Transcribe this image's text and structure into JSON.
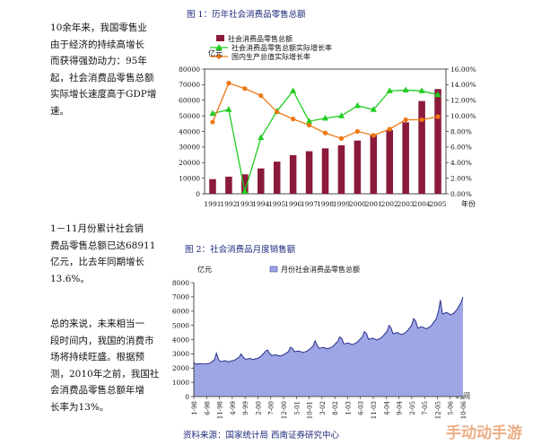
{
  "text": {
    "p1": "10余年来，我国零售业\n由于经济的持续高增长\n而获得强劲动力：95年\n起，社会消费品零售总额\n实际增长速度高于GDP增\n速。",
    "p2": "1－11月份累计社会销\n费品零售总额已达68911\n亿元，比去年同期增长\n13.6%。",
    "p3": "总的来说，未来相当一\n段时间内，我国的消费市\n场将持续旺盛。根据预\n测，2010年之前，我国社\n会消费品零售总额年增\n长率为13%。"
  },
  "figure1": {
    "title": "图 1：历年社会消费品零售总额",
    "y_unit": "亿元",
    "x_unit": "年份",
    "legend": [
      "社会消费品零售总额",
      "社会消费品零售总额实际增长率",
      "国内生产总值实际增长率"
    ]
  },
  "figure2": {
    "title": "图 2：社会消费品月度销售额",
    "y_unit": "亿元",
    "x_unit": "时间",
    "legend": [
      "月份社会消费品零售总额"
    ]
  },
  "source": "资料来源：国家统计局  西南证券研究中心",
  "watermark": "手动动手游",
  "colors": {
    "bar": "#8b1a3a",
    "green": "#22cc22",
    "orange": "#ee7711",
    "area": "#9ea6e6",
    "area_line": "#2a2f8a",
    "title": "#1d2a7a"
  },
  "chart_data": [
    {
      "type": "bar",
      "categories": [
        "1991",
        "1992",
        "1993",
        "1994",
        "1995",
        "1996",
        "1997",
        "1998",
        "1999",
        "2000",
        "2001",
        "2002",
        "2003",
        "2004",
        "2005"
      ],
      "ylim": [
        0,
        80000
      ],
      "y_ticks": [
        0,
        10000,
        20000,
        30000,
        40000,
        50000,
        60000,
        70000,
        80000
      ],
      "y2lim": [
        0,
        0.16
      ],
      "y2_ticks": [
        "0.00%",
        "2.00%",
        "4.00%",
        "6.00%",
        "8.00%",
        "10.00%",
        "12.00%",
        "14.00%",
        "16.00%"
      ],
      "series": [
        {
          "name": "社会消费品零售总额",
          "kind": "bar",
          "values": [
            9400,
            10990,
            12460,
            16260,
            20620,
            24770,
            27300,
            29150,
            31130,
            34150,
            37590,
            40910,
            45840,
            59500,
            67200
          ]
        },
        {
          "name": "社会消费品零售总额实际增长率",
          "kind": "line",
          "values": [
            0.103,
            0.108,
            0.003,
            0.072,
            0.106,
            0.132,
            0.093,
            0.097,
            0.1,
            0.113,
            0.108,
            0.132,
            0.133,
            0.132,
            0.127
          ]
        },
        {
          "name": "国内生产总值实际增长率",
          "kind": "line",
          "values": [
            0.092,
            0.142,
            0.135,
            0.126,
            0.105,
            0.096,
            0.088,
            0.078,
            0.071,
            0.08,
            0.075,
            0.083,
            0.095,
            0.095,
            0.099
          ]
        }
      ]
    },
    {
      "type": "area",
      "x_labels": [
        "1-98",
        "6-98",
        "11-98",
        "4-99",
        "9-99",
        "2-00",
        "7-00",
        "12-00",
        "5-01",
        "10-01",
        "3-02",
        "8-02",
        "1-03",
        "6-03",
        "11-03",
        "4-04",
        "9-04",
        "2-05",
        "7-05",
        "12-05",
        "5-06",
        "10-06"
      ],
      "ylim": [
        0,
        8000
      ],
      "y_ticks": [
        0,
        1000,
        2000,
        3000,
        4000,
        5000,
        6000,
        7000,
        8000
      ],
      "series": [
        {
          "name": "月份社会消费品零售总额",
          "values": [
            2390,
            2270,
            2300,
            2290,
            2320,
            2280,
            2300,
            2310,
            2350,
            2470,
            2570,
            3040,
            2600,
            2450,
            2480,
            2520,
            2480,
            2440,
            2500,
            2520,
            2570,
            2680,
            2750,
            2990,
            2780,
            2620,
            2640,
            2680,
            2640,
            2600,
            2650,
            2680,
            2750,
            2880,
            3030,
            3210,
            3260,
            3000,
            2880,
            2910,
            2930,
            2870,
            2850,
            2890,
            2970,
            3060,
            3150,
            3460,
            3380,
            3150,
            3180,
            3200,
            3150,
            3100,
            3140,
            3180,
            3280,
            3410,
            3520,
            3910,
            3600,
            3390,
            3420,
            3460,
            3400,
            3350,
            3400,
            3460,
            3560,
            3720,
            3860,
            4180,
            4080,
            3690,
            3730,
            3760,
            3710,
            3650,
            3700,
            3770,
            3880,
            4050,
            4190,
            4560,
            4420,
            4020,
            4060,
            4100,
            4040,
            3980,
            4030,
            4110,
            4230,
            4410,
            4570,
            4990,
            4810,
            4400,
            4450,
            4490,
            4420,
            4360,
            4410,
            4500,
            4630,
            4830,
            5000,
            5460,
            5300,
            4800,
            4860,
            4900,
            4830,
            4760,
            4810,
            4910,
            5050,
            5270,
            5460,
            5960,
            6780,
            5800,
            5850,
            5900,
            5820,
            5740,
            5800,
            5920,
            6090,
            6350,
            6600,
            7000
          ]
        }
      ]
    }
  ]
}
